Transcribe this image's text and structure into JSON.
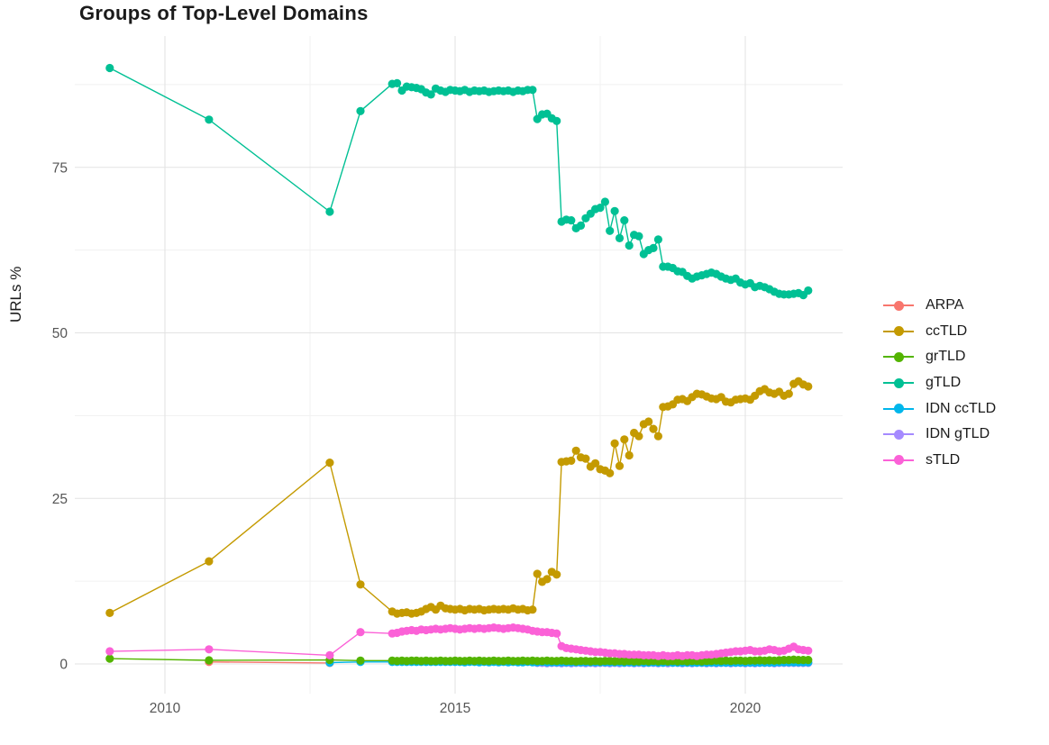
{
  "title": "Groups of Top-Level Domains",
  "y_axis": {
    "label": "URLs %",
    "ticks": [
      "0",
      "25",
      "50",
      "75"
    ]
  },
  "x_axis": {
    "ticks": [
      "2010",
      "2015",
      "2020"
    ]
  },
  "legend": {
    "items": [
      {
        "label": "ARPA",
        "color": "#F8766D"
      },
      {
        "label": "ccTLD",
        "color": "#C49A00"
      },
      {
        "label": "grTLD",
        "color": "#53B400"
      },
      {
        "label": "gTLD",
        "color": "#00C094"
      },
      {
        "label": "IDN ccTLD",
        "color": "#00B6EB"
      },
      {
        "label": "IDN gTLD",
        "color": "#A58AFF"
      },
      {
        "label": "sTLD",
        "color": "#FB61D7"
      }
    ]
  },
  "chart_data": {
    "type": "line",
    "title": "Groups of Top-Level Domains",
    "xlabel": "",
    "ylabel": "URLs %",
    "xlim": [
      2008.45,
      2021.7
    ],
    "ylim": [
      -4.5,
      94.8
    ],
    "x_ticks": [
      2010,
      2015,
      2020
    ],
    "x_minor": [
      2012.5,
      2017.5
    ],
    "y_ticks": [
      0,
      25,
      50,
      75
    ],
    "y_minor": [
      12.5,
      37.5,
      62.5,
      87.5
    ],
    "grid": true,
    "legend_position": "right",
    "draw_order": [
      "ARPA",
      "IDN gTLD",
      "IDN ccTLD",
      "grTLD",
      "ccTLD",
      "gTLD",
      "sTLD"
    ],
    "series": [
      {
        "name": "ARPA",
        "color": "#F8766D",
        "points": [
          [
            2010.76,
            0.3
          ],
          [
            2012.84,
            0.15
          ]
        ]
      },
      {
        "name": "ccTLD",
        "color": "#C49A00",
        "points": [
          [
            2009.05,
            7.7
          ],
          [
            2010.76,
            15.5
          ],
          [
            2012.84,
            30.4
          ],
          [
            2013.37,
            12.0
          ]
        ],
        "monthly_start": 2013.9167,
        "monthly_values": [
          7.9,
          7.6,
          7.7,
          7.8,
          7.6,
          7.7,
          7.9,
          8.3,
          8.6,
          8.2,
          8.8,
          8.4,
          8.3,
          8.2,
          8.3,
          8.1,
          8.3,
          8.2,
          8.3,
          8.1,
          8.2,
          8.3,
          8.2,
          8.3,
          8.2,
          8.4,
          8.2,
          8.3,
          8.1,
          8.2,
          13.6,
          12.4,
          12.8,
          13.9,
          13.5,
          30.5,
          30.6,
          30.7,
          32.2,
          31.2,
          31.0,
          29.8,
          30.3,
          29.4,
          29.2,
          28.8,
          33.3,
          29.9,
          33.9,
          31.5,
          34.9,
          34.4,
          36.2,
          36.6,
          35.5,
          34.4,
          38.8,
          38.9,
          39.2,
          39.9,
          40.0,
          39.7,
          40.3,
          40.8,
          40.7,
          40.4,
          40.1,
          40.0,
          40.3,
          39.6,
          39.5,
          39.9,
          40.0,
          40.1,
          39.9,
          40.5,
          41.2,
          41.5,
          41.0,
          40.8,
          41.1,
          40.5,
          40.8,
          42.3,
          42.7,
          42.2,
          41.9
        ]
      },
      {
        "name": "grTLD",
        "color": "#53B400",
        "points": [
          [
            2009.05,
            0.8
          ],
          [
            2010.76,
            0.55
          ],
          [
            2012.84,
            0.6
          ],
          [
            2013.37,
            0.5
          ]
        ],
        "monthly_start": 2013.9167,
        "monthly_values": [
          0.5,
          0.45,
          0.5,
          0.45,
          0.5,
          0.5,
          0.45,
          0.5,
          0.45,
          0.45,
          0.5,
          0.45,
          0.45,
          0.5,
          0.45,
          0.45,
          0.5,
          0.45,
          0.5,
          0.45,
          0.45,
          0.5,
          0.45,
          0.45,
          0.5,
          0.45,
          0.45,
          0.5,
          0.45,
          0.5,
          0.45,
          0.45,
          0.5,
          0.45,
          0.45,
          0.5,
          0.45,
          0.45,
          0.4,
          0.45,
          0.45,
          0.4,
          0.45,
          0.4,
          0.45,
          0.45,
          0.4,
          0.45,
          0.4,
          0.45,
          0.4,
          0.4,
          0.45,
          0.4,
          0.45,
          0.4,
          0.45,
          0.4,
          0.45,
          0.4,
          0.45,
          0.4,
          0.45,
          0.45,
          0.4,
          0.45,
          0.45,
          0.5,
          0.45,
          0.5,
          0.45,
          0.5,
          0.5,
          0.45,
          0.5,
          0.5,
          0.55,
          0.5,
          0.55,
          0.5,
          0.55,
          0.6,
          0.6,
          0.65,
          0.6,
          0.6,
          0.6
        ]
      },
      {
        "name": "gTLD",
        "color": "#00C094",
        "points": [
          [
            2009.05,
            90.0
          ],
          [
            2010.76,
            82.2
          ],
          [
            2012.84,
            68.3
          ],
          [
            2013.37,
            83.5
          ]
        ],
        "monthly_start": 2013.9167,
        "monthly_values": [
          87.6,
          87.7,
          86.6,
          87.2,
          87.1,
          87.0,
          86.8,
          86.3,
          86.0,
          86.9,
          86.6,
          86.4,
          86.7,
          86.6,
          86.5,
          86.7,
          86.4,
          86.6,
          86.5,
          86.6,
          86.4,
          86.5,
          86.6,
          86.5,
          86.6,
          86.4,
          86.6,
          86.5,
          86.7,
          86.7,
          82.3,
          83.0,
          83.1,
          82.4,
          82.0,
          66.8,
          67.1,
          67.0,
          65.8,
          66.2,
          67.3,
          68.0,
          68.7,
          68.9,
          69.8,
          65.4,
          68.4,
          64.3,
          67.0,
          63.2,
          64.8,
          64.6,
          61.9,
          62.5,
          62.8,
          64.1,
          60.0,
          60.0,
          59.8,
          59.3,
          59.2,
          58.6,
          58.2,
          58.5,
          58.7,
          58.9,
          59.1,
          58.9,
          58.5,
          58.2,
          58.0,
          58.2,
          57.6,
          57.3,
          57.5,
          56.9,
          57.1,
          56.9,
          56.6,
          56.2,
          55.9,
          55.8,
          55.8,
          55.9,
          56.0,
          55.7,
          56.4
        ]
      },
      {
        "name": "IDN ccTLD",
        "color": "#00B6EB",
        "points": [
          [
            2012.84,
            0.2
          ],
          [
            2013.37,
            0.3
          ]
        ],
        "monthly_start": 2013.9167,
        "monthly_values": [
          0.3,
          0.3,
          0.3,
          0.3,
          0.3,
          0.3,
          0.3,
          0.3,
          0.3,
          0.3,
          0.3,
          0.3,
          0.3,
          0.3,
          0.3,
          0.25,
          0.3,
          0.3,
          0.25,
          0.3,
          0.25,
          0.3,
          0.25,
          0.3,
          0.25,
          0.3,
          0.25,
          0.25,
          0.3,
          0.25,
          0.25,
          0.3,
          0.25,
          0.25,
          0.25,
          0.25,
          0.25,
          0.25,
          0.25,
          0.25,
          0.25,
          0.25,
          0.25,
          0.25,
          0.25,
          0.25,
          0.25,
          0.25,
          0.2,
          0.25,
          0.2,
          0.25,
          0.2,
          0.2,
          0.25,
          0.2,
          0.2,
          0.25,
          0.2,
          0.2,
          0.2,
          0.2,
          0.2,
          0.2,
          0.2,
          0.2,
          0.2,
          0.2,
          0.2,
          0.2,
          0.2,
          0.2,
          0.2,
          0.2,
          0.2,
          0.2,
          0.2,
          0.2,
          0.2,
          0.2,
          0.25,
          0.25,
          0.25,
          0.25,
          0.25,
          0.25,
          0.25
        ]
      },
      {
        "name": "IDN gTLD",
        "color": "#A58AFF",
        "points": [],
        "monthly_start": 2016.4167,
        "monthly_values": [
          0.15,
          0.15,
          0.1,
          0.15,
          0.15,
          0.1,
          0.15,
          0.1,
          0.15,
          0.15,
          0.1,
          0.15,
          0.1,
          0.15,
          0.15,
          0.1,
          0.15,
          0.1,
          0.15,
          0.15,
          0.1,
          0.15,
          0.1,
          0.15,
          0.15,
          0.1,
          0.15,
          0.1,
          0.15,
          0.15,
          0.1,
          0.15,
          0.1,
          0.15,
          0.15,
          0.1,
          0.15,
          0.1,
          0.15,
          0.15,
          0.1,
          0.15,
          0.15,
          0.1,
          0.15,
          0.1,
          0.15,
          0.15,
          0.15,
          0.1,
          0.15,
          0.15,
          0.15,
          0.15,
          0.15,
          0.15,
          0.15
        ]
      },
      {
        "name": "sTLD",
        "color": "#FB61D7",
        "points": [
          [
            2009.05,
            1.9
          ],
          [
            2010.76,
            2.2
          ],
          [
            2012.84,
            1.3
          ],
          [
            2013.37,
            4.8
          ]
        ],
        "monthly_start": 2013.9167,
        "monthly_values": [
          4.6,
          4.7,
          4.9,
          5.0,
          5.1,
          5.0,
          5.2,
          5.1,
          5.2,
          5.3,
          5.2,
          5.3,
          5.4,
          5.3,
          5.2,
          5.3,
          5.4,
          5.3,
          5.4,
          5.3,
          5.4,
          5.5,
          5.4,
          5.3,
          5.4,
          5.5,
          5.4,
          5.3,
          5.2,
          5.0,
          4.9,
          4.8,
          4.8,
          4.7,
          4.6,
          2.7,
          2.4,
          2.3,
          2.2,
          2.1,
          2.0,
          1.9,
          1.8,
          1.8,
          1.7,
          1.6,
          1.6,
          1.5,
          1.5,
          1.4,
          1.4,
          1.4,
          1.3,
          1.3,
          1.3,
          1.2,
          1.3,
          1.2,
          1.2,
          1.3,
          1.2,
          1.3,
          1.3,
          1.2,
          1.3,
          1.4,
          1.4,
          1.5,
          1.6,
          1.7,
          1.8,
          1.9,
          1.9,
          2.0,
          2.1,
          1.9,
          1.9,
          2.0,
          2.2,
          2.1,
          1.9,
          2.0,
          2.3,
          2.6,
          2.2,
          2.1,
          2.0
        ]
      }
    ]
  }
}
